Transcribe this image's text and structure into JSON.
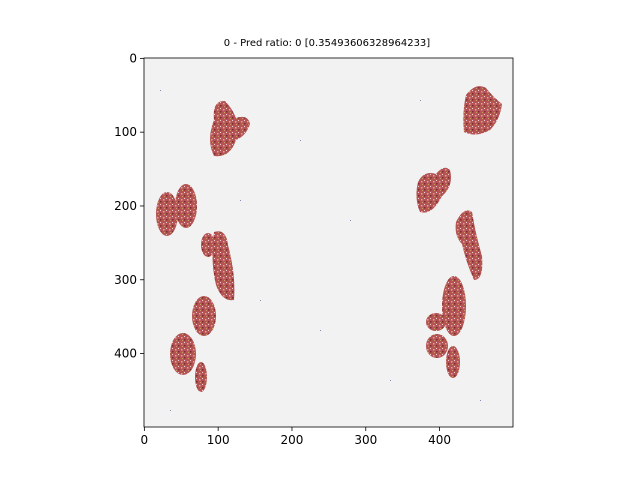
{
  "chart_data": {
    "type": "image",
    "title": "0 - Pred ratio: 0 [0.35493606328964233]",
    "xlim": [
      -0.5,
      499.5
    ],
    "ylim": [
      499.5,
      -0.5
    ],
    "xticks": [
      0,
      100,
      200,
      300,
      400
    ],
    "yticks": [
      0,
      100,
      200,
      300,
      400
    ]
  }
}
